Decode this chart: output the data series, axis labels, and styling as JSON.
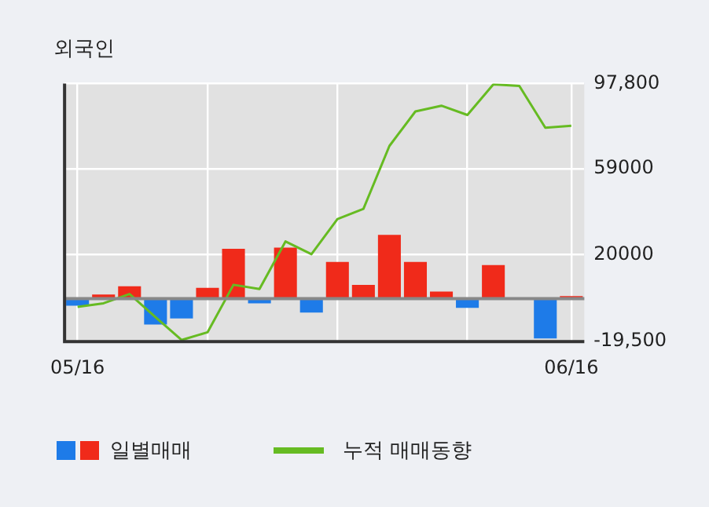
{
  "chart_data": {
    "type": "bar",
    "title": "외국인",
    "categories": [
      "05/16",
      null,
      null,
      null,
      null,
      null,
      null,
      null,
      null,
      null,
      null,
      null,
      null,
      null,
      null,
      null,
      null,
      null,
      null,
      "06/16"
    ],
    "series": [
      {
        "name": "일별매매",
        "colors": [
          "#1e7be8",
          "#f02a1a",
          "#f02a1a",
          "#1e7be8",
          "#1e7be8",
          "#f02a1a",
          "#f02a1a",
          "#1e7be8",
          "#f02a1a",
          "#1e7be8",
          "#f02a1a",
          "#f02a1a",
          "#f02a1a",
          "#f02a1a",
          "#f02a1a",
          "#1e7be8",
          "#f02a1a",
          "#f02a1a",
          "#1e7be8",
          "#f02a1a"
        ],
        "values": [
          -3200,
          1900,
          5600,
          -11800,
          -9000,
          4900,
          22700,
          -2100,
          23200,
          -6300,
          16700,
          6300,
          29000,
          16700,
          3200,
          -4200,
          15300,
          0,
          -18100,
          1200
        ]
      },
      {
        "name": "누적 매매동향",
        "type": "line",
        "color": "#66bb22",
        "values": [
          -3700,
          -2100,
          2100,
          -8400,
          -18800,
          -15300,
          6300,
          4400,
          26000,
          20200,
          36200,
          40800,
          69400,
          85100,
          87700,
          83500,
          97400,
          96700,
          77700,
          78600
        ]
      }
    ],
    "ylim": [
      -19500,
      97800
    ],
    "yticks": [
      {
        "value": 97800,
        "label": "97,800"
      },
      59000,
      20000,
      {
        "value": -19500,
        "label": "-19,500"
      }
    ],
    "grid": true,
    "legend": "bottom",
    "marker": "none",
    "line_style": "solid"
  }
}
